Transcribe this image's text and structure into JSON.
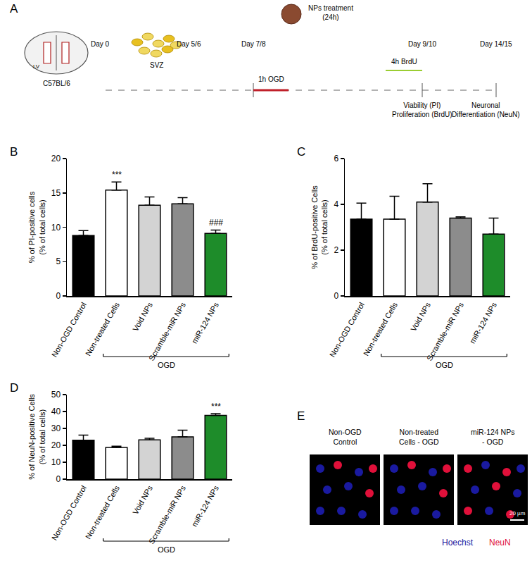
{
  "chart_data": [
    {
      "type": "bar",
      "panel": "B",
      "ylabel": [
        "% of PI-positive cells",
        "(% of total cells)"
      ],
      "categories": [
        "Non-OGD Control",
        "Non-treated Cells",
        "Void NPs",
        "Scramble-miR NPs",
        "miR-124 NPs"
      ],
      "values": [
        8.8,
        15.4,
        13.2,
        13.4,
        9.1
      ],
      "errors": [
        0.7,
        1.2,
        1.2,
        0.9,
        0.5
      ],
      "colors": [
        "#000000",
        "#ffffff",
        "#d3d3d3",
        "#8c8c8c",
        "#1e8c2a"
      ],
      "ylim": [
        0,
        20
      ],
      "yticks": [
        0,
        5,
        10,
        15,
        20
      ],
      "grid": false,
      "annotations": [
        {
          "category": "Non-treated Cells",
          "text": "***"
        },
        {
          "category": "miR-124 NPs",
          "text": "###"
        }
      ],
      "group": {
        "label": "OGD",
        "from": "Non-treated Cells",
        "to": "miR-124 NPs"
      }
    },
    {
      "type": "bar",
      "panel": "C",
      "ylabel": [
        "% of BrdU-positive Cells",
        "(% of total cells)"
      ],
      "categories": [
        "Non-OGD Control",
        "Non-treated Cells",
        "Void NPs",
        "Scramble-miR NPs",
        "miR-124 NPs"
      ],
      "values": [
        3.35,
        3.35,
        4.1,
        3.4,
        2.7
      ],
      "errors": [
        0.7,
        1.0,
        0.8,
        0.05,
        0.7
      ],
      "colors": [
        "#000000",
        "#ffffff",
        "#d3d3d3",
        "#8c8c8c",
        "#1e8c2a"
      ],
      "ylim": [
        0,
        6
      ],
      "yticks": [
        0,
        2,
        4,
        6
      ],
      "grid": false,
      "annotations": [],
      "group": {
        "label": "OGD",
        "from": "Non-treated Cells",
        "to": "miR-124 NPs"
      }
    },
    {
      "type": "bar",
      "panel": "D",
      "ylabel": [
        "% of NeuN-positive Cells",
        "(% of total cells)"
      ],
      "categories": [
        "Non-OGD Control",
        "Non-treated Cells",
        "Void NPs",
        "Scramble-miR NPs",
        "miR-124 NPs"
      ],
      "values": [
        23,
        18.7,
        23.2,
        25,
        37.7
      ],
      "errors": [
        3,
        0.8,
        1.0,
        4,
        1.0
      ],
      "colors": [
        "#000000",
        "#ffffff",
        "#d3d3d3",
        "#8c8c8c",
        "#1e8c2a"
      ],
      "ylim": [
        0,
        50
      ],
      "yticks": [
        0,
        10,
        20,
        30,
        40,
        50
      ],
      "grid": false,
      "annotations": [
        {
          "category": "miR-124 NPs",
          "text": "***"
        }
      ],
      "group": {
        "label": "OGD",
        "from": "Non-treated Cells",
        "to": "miR-124 NPs"
      }
    }
  ],
  "panel_a": {
    "letter": "A",
    "strain": "C57BL/6",
    "region": "SVZ",
    "ventricle": "LV",
    "days": [
      "Day 0",
      "Day 5/6",
      "Day 7/8",
      "Day 9/10",
      "Day 14/15"
    ],
    "ogd": "1h OGD",
    "treatment": [
      "NPs treatment",
      "(24h)"
    ],
    "brdu": "4h BrdU",
    "readouts_day9": [
      "Viability (PI)",
      "Proliferation (BrdU)"
    ],
    "readouts_day14": [
      "Neuronal",
      "Differentiation (NeuN)"
    ]
  },
  "panel_e": {
    "letter": "E",
    "images": [
      [
        "Non-OGD",
        "Control"
      ],
      [
        "Non-treated",
        "Cells - OGD"
      ],
      [
        "miR-124 NPs",
        "- OGD"
      ]
    ],
    "scale_bar": "20 µm",
    "stains": [
      {
        "name": "Hoechst",
        "color": "#1a1aa0"
      },
      {
        "name": "NeuN",
        "color": "#e0103a"
      }
    ]
  }
}
